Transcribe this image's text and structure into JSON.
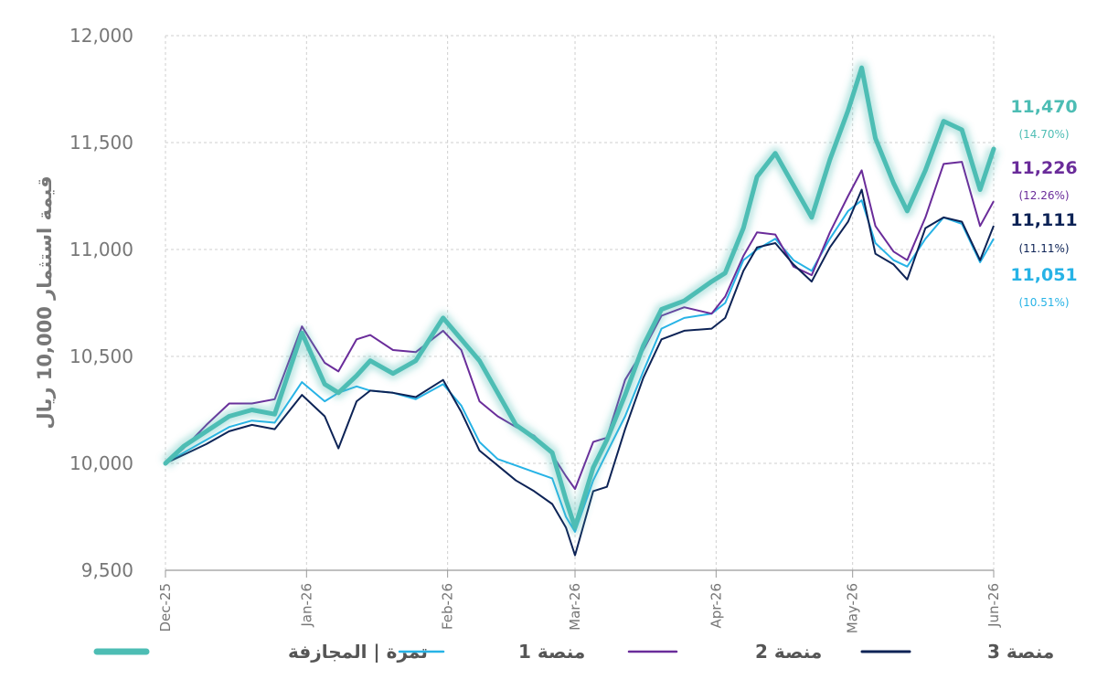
{
  "chart_data": {
    "type": "line",
    "ylabel": "قيمة استثمار 10,000 ريال",
    "ylim": [
      9500,
      12000
    ],
    "yticks": [
      9500,
      10000,
      10500,
      11000,
      11500,
      12000
    ],
    "ytick_labels": [
      "9,500",
      "10,000",
      "10,500",
      "11,000",
      "11,500",
      "12,000"
    ],
    "xticks": [
      "2025-12-01",
      "2026-01-01",
      "2026-02-01",
      "2026-03-01",
      "2026-04-01",
      "2026-05-01",
      "2026-06-01"
    ],
    "xtick_labels": [
      "Dec-25",
      "Jan-26",
      "Feb-26",
      "Mar-26",
      "Apr-26",
      "May-26",
      "Jun-26"
    ],
    "grid": true,
    "legend_position": "bottom",
    "series": [
      {
        "name": "تمرة | المجازفة",
        "color": "#4dbdb4",
        "style": "thick-glow",
        "end_value": "11,470",
        "end_pct": "(14.70%)",
        "x": [
          "2025-12-01",
          "2025-12-05",
          "2025-12-10",
          "2025-12-15",
          "2025-12-20",
          "2025-12-25",
          "2025-12-31",
          "2026-01-05",
          "2026-01-08",
          "2026-01-12",
          "2026-01-15",
          "2026-01-20",
          "2026-01-25",
          "2026-01-31",
          "2026-02-04",
          "2026-02-08",
          "2026-02-12",
          "2026-02-16",
          "2026-02-20",
          "2026-02-24",
          "2026-02-27",
          "2026-03-01",
          "2026-03-05",
          "2026-03-08",
          "2026-03-12",
          "2026-03-16",
          "2026-03-20",
          "2026-03-25",
          "2026-03-31",
          "2026-04-03",
          "2026-04-07",
          "2026-04-10",
          "2026-04-14",
          "2026-04-18",
          "2026-04-22",
          "2026-04-26",
          "2026-04-30",
          "2026-05-03",
          "2026-05-06",
          "2026-05-10",
          "2026-05-13",
          "2026-05-17",
          "2026-05-21",
          "2026-05-25",
          "2026-05-29",
          "2026-06-01"
        ],
        "values": [
          10000,
          10080,
          10150,
          10220,
          10250,
          10230,
          10610,
          10370,
          10330,
          10410,
          10480,
          10420,
          10480,
          10680,
          10580,
          10480,
          10330,
          10180,
          10120,
          10050,
          9830,
          9700,
          9980,
          10110,
          10320,
          10550,
          10720,
          10760,
          10850,
          10890,
          11100,
          11340,
          11450,
          11300,
          11150,
          11420,
          11650,
          11850,
          11520,
          11310,
          11180,
          11370,
          11600,
          11560,
          11280,
          11470
        ]
      },
      {
        "name": "منصة 1",
        "color": "#27b3e6",
        "style": "thin",
        "end_value": "11,051",
        "end_pct": "(10.51%)",
        "x": [
          "2025-12-01",
          "2025-12-05",
          "2025-12-10",
          "2025-12-15",
          "2025-12-20",
          "2025-12-25",
          "2025-12-31",
          "2026-01-05",
          "2026-01-08",
          "2026-01-12",
          "2026-01-15",
          "2026-01-20",
          "2026-01-25",
          "2026-01-31",
          "2026-02-04",
          "2026-02-08",
          "2026-02-12",
          "2026-02-16",
          "2026-02-20",
          "2026-02-24",
          "2026-02-27",
          "2026-03-01",
          "2026-03-05",
          "2026-03-08",
          "2026-03-12",
          "2026-03-16",
          "2026-03-20",
          "2026-03-25",
          "2026-03-31",
          "2026-04-03",
          "2026-04-07",
          "2026-04-10",
          "2026-04-14",
          "2026-04-18",
          "2026-04-22",
          "2026-04-26",
          "2026-04-30",
          "2026-05-03",
          "2026-05-06",
          "2026-05-10",
          "2026-05-13",
          "2026-05-17",
          "2026-05-21",
          "2026-05-25",
          "2026-05-29",
          "2026-06-01"
        ],
        "values": [
          10000,
          10050,
          10110,
          10170,
          10200,
          10190,
          10380,
          10290,
          10330,
          10360,
          10340,
          10330,
          10300,
          10370,
          10270,
          10100,
          10020,
          9990,
          9960,
          9930,
          9750,
          9680,
          9920,
          10050,
          10220,
          10430,
          10630,
          10680,
          10700,
          10750,
          10950,
          11000,
          11050,
          10950,
          10900,
          11050,
          11180,
          11230,
          11030,
          10950,
          10920,
          11050,
          11150,
          11120,
          10940,
          11051
        ]
      },
      {
        "name": "منصة 2",
        "color": "#6a2c9a",
        "style": "thin",
        "end_value": "11,226",
        "end_pct": "(12.26%)",
        "x": [
          "2025-12-01",
          "2025-12-05",
          "2025-12-10",
          "2025-12-15",
          "2025-12-20",
          "2025-12-25",
          "2025-12-31",
          "2026-01-05",
          "2026-01-08",
          "2026-01-12",
          "2026-01-15",
          "2026-01-20",
          "2026-01-25",
          "2026-01-31",
          "2026-02-04",
          "2026-02-08",
          "2026-02-12",
          "2026-02-16",
          "2026-02-20",
          "2026-02-24",
          "2026-02-27",
          "2026-03-01",
          "2026-03-05",
          "2026-03-08",
          "2026-03-12",
          "2026-03-16",
          "2026-03-20",
          "2026-03-25",
          "2026-03-31",
          "2026-04-03",
          "2026-04-07",
          "2026-04-10",
          "2026-04-14",
          "2026-04-18",
          "2026-04-22",
          "2026-04-26",
          "2026-04-30",
          "2026-05-03",
          "2026-05-06",
          "2026-05-10",
          "2026-05-13",
          "2026-05-17",
          "2026-05-21",
          "2026-05-25",
          "2026-05-29",
          "2026-06-01"
        ],
        "values": [
          10000,
          10070,
          10180,
          10280,
          10280,
          10300,
          10640,
          10470,
          10430,
          10580,
          10600,
          10530,
          10520,
          10620,
          10530,
          10290,
          10220,
          10170,
          10130,
          10040,
          9940,
          9880,
          10100,
          10120,
          10390,
          10530,
          10690,
          10730,
          10700,
          10780,
          10970,
          11080,
          11070,
          10920,
          10880,
          11080,
          11250,
          11370,
          11110,
          10990,
          10950,
          11150,
          11400,
          11410,
          11110,
          11226
        ]
      },
      {
        "name": "منصة 3",
        "color": "#0d2356",
        "style": "thin",
        "end_value": "11,111",
        "end_pct": "(11.11%)",
        "x": [
          "2025-12-01",
          "2025-12-05",
          "2025-12-10",
          "2025-12-15",
          "2025-12-20",
          "2025-12-25",
          "2025-12-31",
          "2026-01-05",
          "2026-01-08",
          "2026-01-12",
          "2026-01-15",
          "2026-01-20",
          "2026-01-25",
          "2026-01-31",
          "2026-02-04",
          "2026-02-08",
          "2026-02-12",
          "2026-02-16",
          "2026-02-20",
          "2026-02-24",
          "2026-02-27",
          "2026-03-01",
          "2026-03-05",
          "2026-03-08",
          "2026-03-12",
          "2026-03-16",
          "2026-03-20",
          "2026-03-25",
          "2026-03-31",
          "2026-04-03",
          "2026-04-07",
          "2026-04-10",
          "2026-04-14",
          "2026-04-18",
          "2026-04-22",
          "2026-04-26",
          "2026-04-30",
          "2026-05-03",
          "2026-05-06",
          "2026-05-10",
          "2026-05-13",
          "2026-05-17",
          "2026-05-21",
          "2026-05-25",
          "2026-05-29",
          "2026-06-01"
        ],
        "values": [
          10000,
          10040,
          10090,
          10150,
          10180,
          10160,
          10320,
          10220,
          10070,
          10290,
          10340,
          10330,
          10310,
          10390,
          10240,
          10060,
          9990,
          9920,
          9870,
          9810,
          9700,
          9570,
          9870,
          9890,
          10160,
          10400,
          10580,
          10620,
          10630,
          10680,
          10900,
          11010,
          11030,
          10930,
          10850,
          11010,
          11130,
          11280,
          10980,
          10930,
          10860,
          11100,
          11150,
          11130,
          10950,
          11111
        ]
      }
    ]
  }
}
